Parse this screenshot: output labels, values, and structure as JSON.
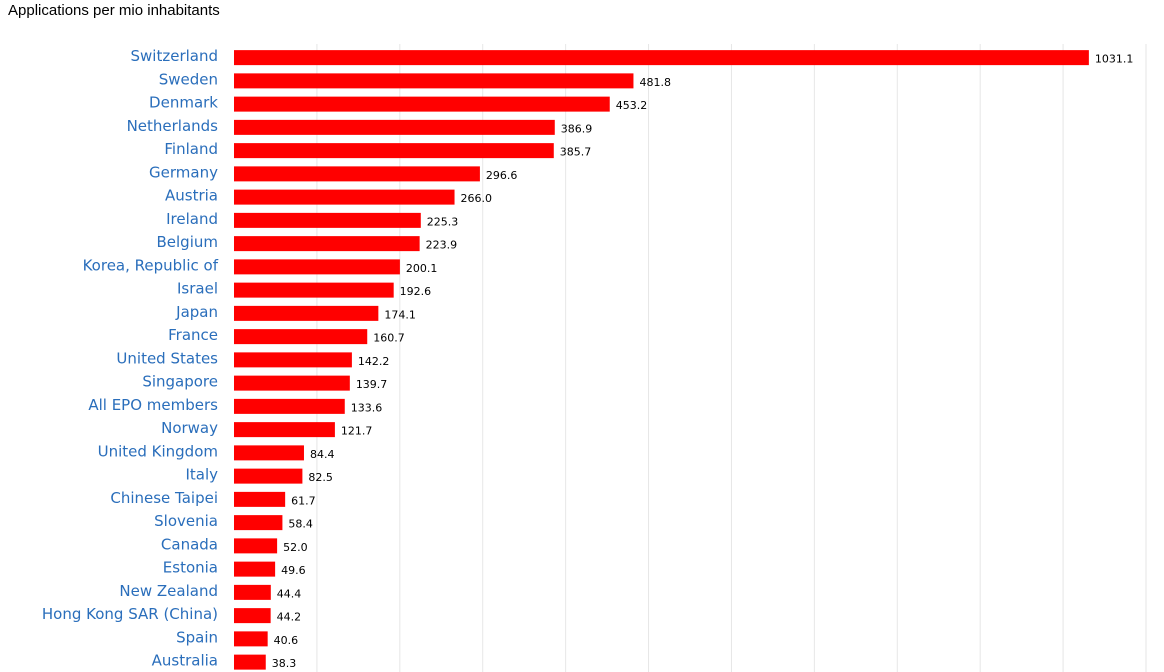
{
  "chart_data": {
    "type": "bar",
    "orientation": "horizontal",
    "title": "Applications per mio inhabitants",
    "xlabel": "",
    "ylabel": "",
    "xlim": [
      0,
      1100
    ],
    "grid": true,
    "legend": "none",
    "bar_color": "#ff0000",
    "label_color": "#2a6ebb",
    "categories": [
      "Switzerland",
      "Sweden",
      "Denmark",
      "Netherlands",
      "Finland",
      "Germany",
      "Austria",
      "Ireland",
      "Belgium",
      "Korea, Republic of",
      "Israel",
      "Japan",
      "France",
      "United States",
      "Singapore",
      "All EPO members",
      "Norway",
      "United Kingdom",
      "Italy",
      "Chinese Taipei",
      "Slovenia",
      "Canada",
      "Estonia",
      "New Zealand",
      "Hong Kong SAR (China)",
      "Spain",
      "Australia"
    ],
    "values": [
      1031.1,
      481.8,
      453.2,
      386.9,
      385.7,
      296.6,
      266.0,
      225.3,
      223.9,
      200.1,
      192.6,
      174.1,
      160.7,
      142.2,
      139.7,
      133.6,
      121.7,
      84.4,
      82.5,
      61.7,
      58.4,
      52.0,
      49.6,
      44.4,
      44.2,
      40.6,
      38.3
    ],
    "value_labels": [
      "1031.1",
      "481.8",
      "453.2",
      "386.9",
      "385.7",
      "296.6",
      "266.0",
      "225.3",
      "223.9",
      "200.1",
      "192.6",
      "174.1",
      "160.7",
      "142.2",
      "139.7",
      "133.6",
      "121.7",
      "84.4",
      "82.5",
      "61.7",
      "58.4",
      "52.0",
      "49.6",
      "44.4",
      "44.2",
      "40.6",
      "38.3"
    ]
  }
}
